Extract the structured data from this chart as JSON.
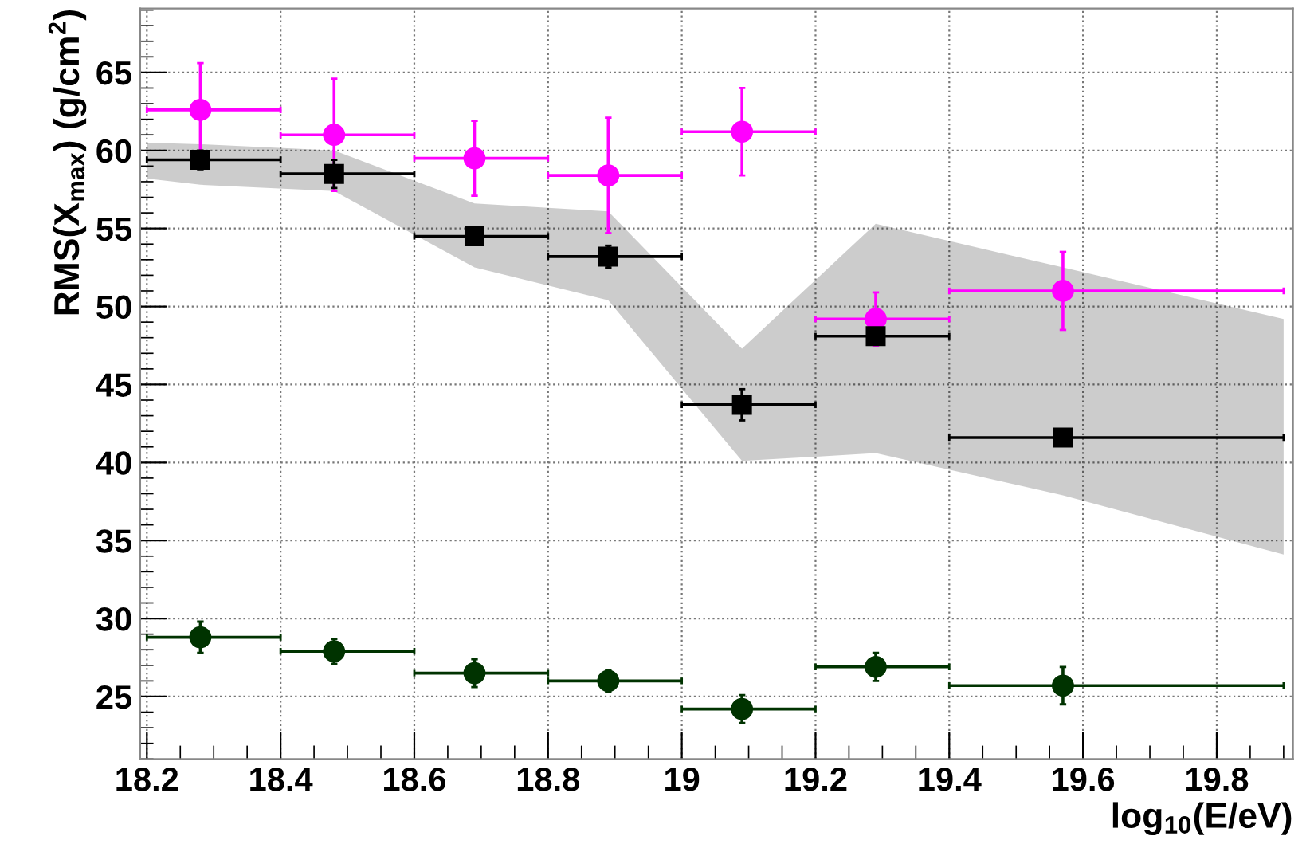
{
  "chart_data": {
    "type": "scatter",
    "xlabel": "log$_{10}$(E/eV)",
    "ylabel": "RMS(X$_{max}$) (g/cm$^{2}$)",
    "x": [
      18.28,
      18.48,
      18.69,
      18.89,
      19.09,
      19.29,
      19.57
    ],
    "series": [
      {
        "color": "#ff00ff",
        "marker": "circle",
        "values": [
          62.6,
          61.0,
          59.5,
          58.4,
          61.2,
          49.2,
          51.0
        ],
        "errors": [
          3.0,
          3.6,
          2.4,
          3.7,
          2.8,
          1.7,
          2.5
        ],
        "xerrors": [
          [
            18.2,
            18.4
          ],
          [
            18.4,
            18.6
          ],
          [
            18.6,
            18.8
          ],
          [
            18.8,
            19.0
          ],
          [
            19.0,
            19.2
          ],
          [
            19.2,
            19.4
          ],
          [
            19.4,
            19.9
          ]
        ]
      },
      {
        "color": "#000000",
        "marker": "square",
        "x": [
          18.2,
          18.28,
          18.48,
          18.69,
          18.89,
          19.09,
          19.29,
          19.57,
          19.9
        ],
        "values": [
          null,
          59.4,
          58.5,
          54.5,
          53.2,
          43.7,
          48.1,
          41.6,
          null
        ],
        "errors": [
          null,
          0.6,
          0.9,
          0.4,
          0.7,
          1.0,
          0.5,
          0.4,
          null
        ],
        "xerrors": [
          null,
          [
            18.2,
            18.4
          ],
          [
            18.4,
            18.6
          ],
          [
            18.6,
            18.8
          ],
          [
            18.8,
            19.0
          ],
          [
            19.0,
            19.2
          ],
          [
            19.2,
            19.4
          ],
          [
            19.4,
            19.9
          ],
          null
        ],
        "lower": [
          58.2,
          57.8,
          57.4,
          52.5,
          50.4,
          40.1,
          40.6,
          37.9,
          34.1
        ],
        "upper": [
          60.5,
          60.4,
          60.0,
          56.6,
          56.1,
          47.3,
          55.3,
          52.5,
          49.2
        ]
      },
      {
        "color": "#003300",
        "marker": "circle",
        "values": [
          28.8,
          27.9,
          26.5,
          26.0,
          24.2,
          26.9,
          25.7
        ],
        "errors": [
          1.0,
          0.8,
          0.9,
          0.7,
          0.9,
          0.9,
          1.2
        ],
        "xerrors": [
          [
            18.2,
            18.4
          ],
          [
            18.4,
            18.6
          ],
          [
            18.6,
            18.8
          ],
          [
            18.8,
            19.0
          ],
          [
            19.0,
            19.2
          ],
          [
            19.2,
            19.4
          ],
          [
            19.4,
            19.9
          ]
        ]
      }
    ],
    "xlim": [
      18.19,
      19.914
    ],
    "ylim": [
      21,
      69.1
    ],
    "xticks": [
      18.2,
      18.4,
      18.6,
      18.8,
      19,
      19.2,
      19.4,
      19.6,
      19.8
    ],
    "yticks": [
      25,
      30,
      35,
      40,
      45,
      50,
      55,
      60,
      65
    ],
    "grid": true
  }
}
